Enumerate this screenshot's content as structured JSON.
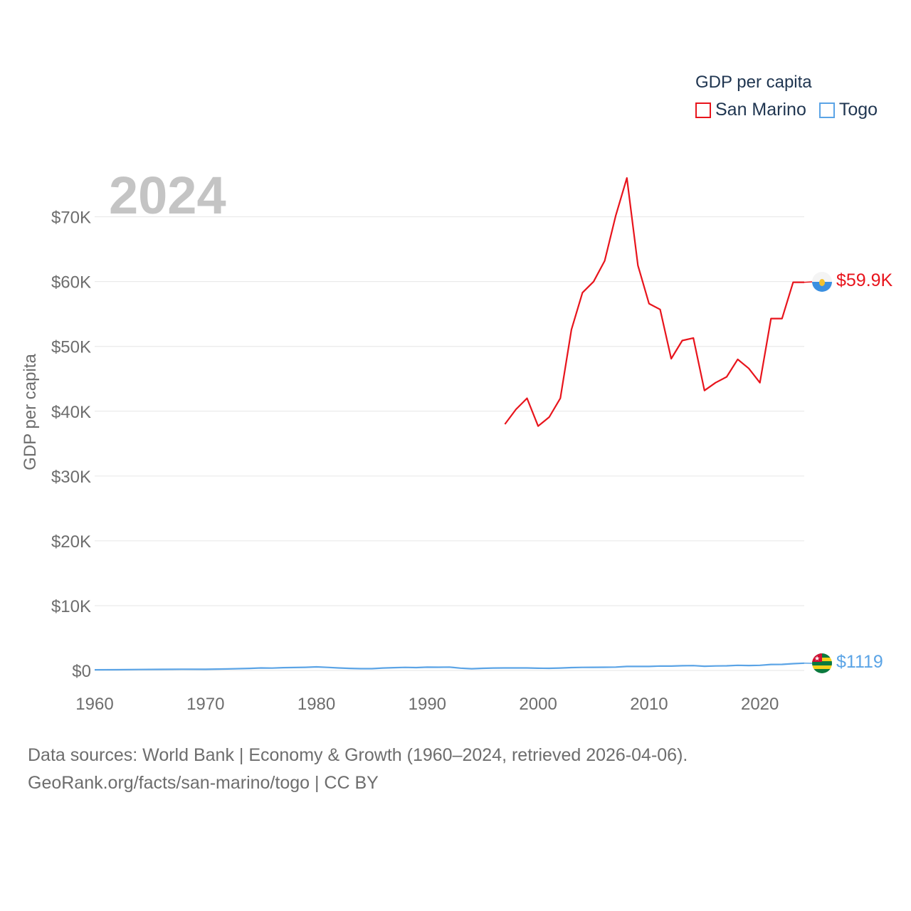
{
  "chart_data": {
    "type": "line",
    "year_label": "2024",
    "ylabel": "GDP per capita",
    "xlabel": "",
    "xlim": [
      1960,
      2024
    ],
    "ylim": [
      0,
      76000
    ],
    "x_ticks": [
      1960,
      1970,
      1980,
      1990,
      2000,
      2010,
      2020
    ],
    "x_tick_labels": [
      "1960",
      "1970",
      "1980",
      "1990",
      "2000",
      "2010",
      "2020"
    ],
    "y_ticks": [
      0,
      10000,
      20000,
      30000,
      40000,
      50000,
      60000,
      70000
    ],
    "y_tick_labels": [
      "$0",
      "$10K",
      "$20K",
      "$30K",
      "$40K",
      "$50K",
      "$60K",
      "$70K"
    ],
    "legend": {
      "title": "GDP per capita",
      "position": "top-right",
      "items": [
        "San Marino",
        "Togo"
      ]
    },
    "series": [
      {
        "name": "San Marino",
        "color": "#e8141c",
        "end_label": "$59.9K",
        "points": [
          [
            1997,
            38000
          ],
          [
            1998,
            40300
          ],
          [
            1999,
            42000
          ],
          [
            2000,
            37700
          ],
          [
            2001,
            39100
          ],
          [
            2002,
            42000
          ],
          [
            2003,
            52600
          ],
          [
            2004,
            58300
          ],
          [
            2005,
            60000
          ],
          [
            2006,
            63200
          ],
          [
            2007,
            70200
          ],
          [
            2008,
            76000
          ],
          [
            2009,
            62500
          ],
          [
            2010,
            56600
          ],
          [
            2011,
            55700
          ],
          [
            2012,
            48100
          ],
          [
            2013,
            50900
          ],
          [
            2014,
            51300
          ],
          [
            2015,
            43200
          ],
          [
            2016,
            44400
          ],
          [
            2017,
            45300
          ],
          [
            2018,
            48000
          ],
          [
            2019,
            46600
          ],
          [
            2020,
            44400
          ],
          [
            2021,
            54300
          ],
          [
            2022,
            54300
          ],
          [
            2023,
            59900
          ],
          [
            2024,
            59900
          ]
        ]
      },
      {
        "name": "Togo",
        "color": "#5ba4e6",
        "end_label": "$1119",
        "points": [
          [
            1960,
            100
          ],
          [
            1962,
            110
          ],
          [
            1964,
            140
          ],
          [
            1966,
            170
          ],
          [
            1968,
            190
          ],
          [
            1970,
            180
          ],
          [
            1972,
            230
          ],
          [
            1974,
            320
          ],
          [
            1975,
            380
          ],
          [
            1976,
            360
          ],
          [
            1977,
            430
          ],
          [
            1978,
            450
          ],
          [
            1979,
            480
          ],
          [
            1980,
            550
          ],
          [
            1981,
            470
          ],
          [
            1982,
            380
          ],
          [
            1983,
            320
          ],
          [
            1984,
            270
          ],
          [
            1985,
            280
          ],
          [
            1986,
            370
          ],
          [
            1987,
            430
          ],
          [
            1988,
            470
          ],
          [
            1989,
            440
          ],
          [
            1990,
            500
          ],
          [
            1991,
            490
          ],
          [
            1992,
            520
          ],
          [
            1993,
            350
          ],
          [
            1994,
            260
          ],
          [
            1995,
            330
          ],
          [
            1996,
            370
          ],
          [
            1997,
            380
          ],
          [
            1998,
            380
          ],
          [
            1999,
            380
          ],
          [
            2000,
            340
          ],
          [
            2001,
            330
          ],
          [
            2002,
            370
          ],
          [
            2003,
            440
          ],
          [
            2004,
            470
          ],
          [
            2005,
            480
          ],
          [
            2006,
            490
          ],
          [
            2007,
            520
          ],
          [
            2008,
            620
          ],
          [
            2009,
            620
          ],
          [
            2010,
            610
          ],
          [
            2011,
            680
          ],
          [
            2012,
            670
          ],
          [
            2013,
            730
          ],
          [
            2014,
            750
          ],
          [
            2015,
            650
          ],
          [
            2016,
            690
          ],
          [
            2017,
            710
          ],
          [
            2018,
            790
          ],
          [
            2019,
            760
          ],
          [
            2020,
            790
          ],
          [
            2021,
            920
          ],
          [
            2022,
            930
          ],
          [
            2023,
            1040
          ],
          [
            2024,
            1119
          ]
        ]
      }
    ]
  },
  "footer": {
    "line1": "Data sources: World Bank | Economy & Growth (1960–2024, retrieved 2026-04-06).",
    "line2": "GeoRank.org/facts/san-marino/togo | CC BY"
  },
  "colors": {
    "grid": "#e6e6e6",
    "tick_text": "#6d6d6d",
    "year_watermark": "#c4c4c4",
    "legend_text": "#1f3550"
  }
}
